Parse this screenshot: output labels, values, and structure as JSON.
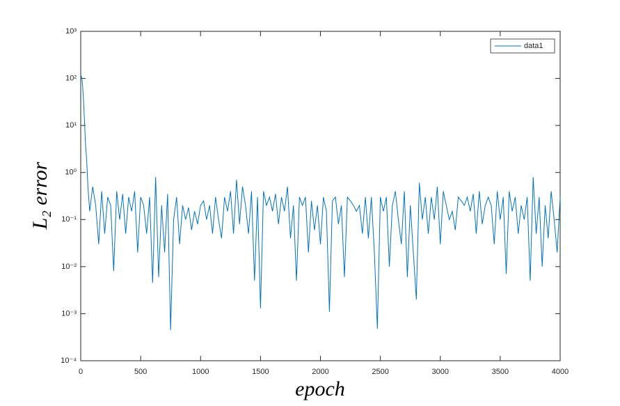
{
  "chart_data": {
    "type": "line",
    "xlabel": "epoch",
    "ylabel": "L₂  error",
    "xlim": [
      0,
      4000
    ],
    "xticks": [
      0,
      500,
      1000,
      1500,
      2000,
      2500,
      3000,
      3500,
      4000
    ],
    "ylim": [
      0.0001,
      1000
    ],
    "log_y": true,
    "grid": false,
    "legend": "northeast",
    "yticks": [
      {
        "value": 0.0001,
        "label": "10⁻⁴"
      },
      {
        "value": 0.001,
        "label": "10⁻³"
      },
      {
        "value": 0.01,
        "label": "10⁻²"
      },
      {
        "value": 0.1,
        "label": "10⁻¹"
      },
      {
        "value": 1,
        "label": "10⁰"
      },
      {
        "value": 10,
        "label": "10¹"
      },
      {
        "value": 100,
        "label": "10²"
      },
      {
        "value": 1000,
        "label": "10³"
      }
    ],
    "x": [
      0,
      10,
      20,
      30,
      40,
      50,
      60,
      75,
      100,
      125,
      150,
      175,
      200,
      225,
      250,
      275,
      300,
      325,
      350,
      375,
      400,
      425,
      450,
      475,
      500,
      525,
      550,
      575,
      600,
      625,
      650,
      675,
      700,
      725,
      750,
      775,
      800,
      825,
      850,
      875,
      900,
      925,
      950,
      975,
      1000,
      1025,
      1050,
      1075,
      1100,
      1125,
      1150,
      1175,
      1200,
      1225,
      1250,
      1275,
      1300,
      1325,
      1350,
      1375,
      1400,
      1425,
      1450,
      1475,
      1500,
      1525,
      1550,
      1575,
      1600,
      1625,
      1650,
      1675,
      1700,
      1725,
      1750,
      1775,
      1800,
      1825,
      1850,
      1875,
      1900,
      1925,
      1950,
      1975,
      2000,
      2025,
      2050,
      2075,
      2100,
      2125,
      2150,
      2175,
      2200,
      2225,
      2250,
      2275,
      2300,
      2325,
      2350,
      2375,
      2400,
      2425,
      2450,
      2475,
      2500,
      2525,
      2550,
      2575,
      2600,
      2625,
      2650,
      2675,
      2700,
      2725,
      2750,
      2775,
      2800,
      2825,
      2850,
      2875,
      2900,
      2925,
      2950,
      2975,
      3000,
      3025,
      3050,
      3075,
      3100,
      3125,
      3150,
      3175,
      3200,
      3225,
      3250,
      3275,
      3300,
      3325,
      3350,
      3375,
      3400,
      3425,
      3450,
      3475,
      3500,
      3525,
      3550,
      3575,
      3600,
      3625,
      3650,
      3675,
      3700,
      3725,
      3750,
      3775,
      3800,
      3825,
      3850,
      3875,
      3900,
      3925,
      3950,
      3975,
      4000
    ],
    "series": [
      {
        "name": "data1",
        "color": "#0072bd",
        "values": [
          120,
          100,
          50,
          15,
          4,
          1.8,
          0.5,
          0.15,
          0.5,
          0.2,
          0.03,
          0.4,
          0.05,
          0.3,
          0.2,
          0.008,
          0.4,
          0.1,
          0.35,
          0.05,
          0.3,
          0.15,
          0.4,
          0.02,
          0.3,
          0.2,
          0.05,
          0.3,
          0.0045,
          0.8,
          0.006,
          0.2,
          0.02,
          0.35,
          0.00045,
          0.1,
          0.3,
          0.03,
          0.2,
          0.1,
          0.18,
          0.06,
          0.15,
          0.08,
          0.2,
          0.25,
          0.1,
          0.2,
          0.05,
          0.3,
          0.1,
          0.04,
          0.3,
          0.15,
          0.4,
          0.05,
          0.7,
          0.08,
          0.5,
          0.2,
          0.05,
          0.4,
          0.005,
          0.3,
          0.0013,
          0.4,
          0.2,
          0.3,
          0.15,
          0.35,
          0.08,
          0.3,
          0.15,
          0.5,
          0.04,
          0.2,
          0.005,
          0.3,
          0.2,
          0.3,
          0.02,
          0.25,
          0.06,
          0.2,
          0.03,
          0.3,
          0.15,
          0.0011,
          0.25,
          0.3,
          0.08,
          0.2,
          0.006,
          0.3,
          0.25,
          0.2,
          0.15,
          0.2,
          0.05,
          0.3,
          0.04,
          0.3,
          0.02,
          0.00048,
          0.3,
          0.15,
          0.3,
          0.01,
          0.2,
          0.4,
          0.1,
          0.03,
          0.4,
          0.006,
          0.2,
          0.02,
          0.002,
          0.6,
          0.1,
          0.3,
          0.05,
          0.3,
          0.1,
          0.5,
          0.03,
          0.4,
          0.2,
          0.1,
          0.15,
          0.06,
          0.3,
          0.25,
          0.2,
          0.3,
          0.15,
          0.35,
          0.05,
          0.4,
          0.08,
          0.2,
          0.3,
          0.2,
          0.03,
          0.4,
          0.1,
          0.3,
          0.007,
          0.4,
          0.15,
          0.3,
          0.05,
          0.2,
          0.1,
          0.3,
          0.005,
          0.8,
          0.05,
          0.3,
          0.01,
          0.2,
          0.04,
          0.4,
          0.1,
          0.02,
          0.3
        ]
      }
    ]
  }
}
